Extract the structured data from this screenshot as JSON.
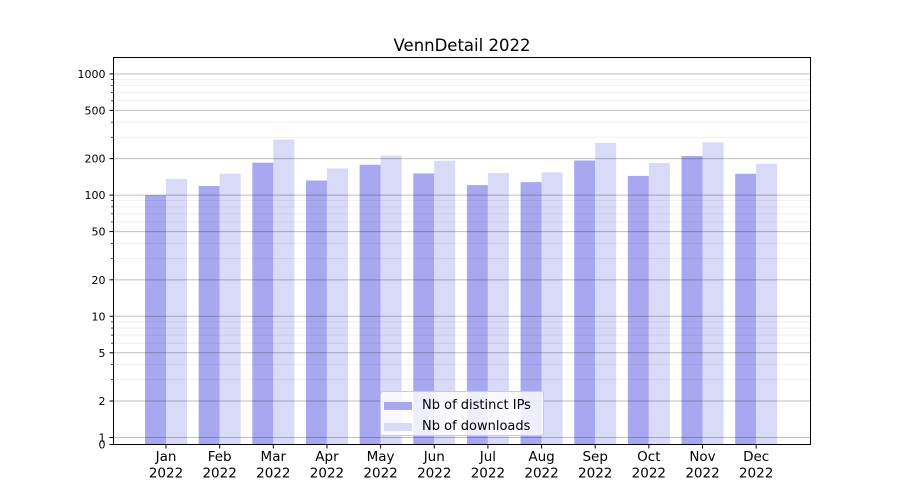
{
  "title": "VennDetail 2022",
  "colors": {
    "ips_bar": "#a8a8f0",
    "downloads_bar": "#d9d9f8",
    "axis": "#000000",
    "grid_major": "rgba(0,0,0,0.25)",
    "grid_minor": "rgba(0,0,0,0.07)",
    "background": "#ffffff"
  },
  "legend": {
    "items": [
      {
        "label": "Nb of distinct IPs",
        "color_key": "ips_bar"
      },
      {
        "label": "Nb of downloads",
        "color_key": "downloads_bar"
      }
    ]
  },
  "chart_data": {
    "type": "bar",
    "title": "VennDetail 2022",
    "yscale": "symlog",
    "grid": true,
    "legend_position": "lower center",
    "categories": [
      "Jan 2022",
      "Feb 2022",
      "Mar 2022",
      "Apr 2022",
      "May 2022",
      "Jun 2022",
      "Jul 2022",
      "Aug 2022",
      "Sep 2022",
      "Oct 2022",
      "Nov 2022",
      "Dec 2022"
    ],
    "series": [
      {
        "name": "Nb of distinct IPs",
        "values": [
          100,
          119,
          185,
          132,
          178,
          151,
          121,
          128,
          193,
          144,
          210,
          150
        ]
      },
      {
        "name": "Nb of downloads",
        "values": [
          136,
          150,
          287,
          166,
          212,
          192,
          152,
          154,
          270,
          184,
          272,
          181
        ]
      }
    ],
    "y_ticks": [
      0,
      1,
      2,
      5,
      10,
      20,
      50,
      100,
      200,
      500,
      1000
    ],
    "y_minor_gridlines": [
      3,
      4,
      6,
      7,
      8,
      9,
      30,
      40,
      60,
      70,
      80,
      90,
      300,
      400,
      600,
      700,
      800,
      900
    ],
    "ylim": [
      0,
      1380
    ]
  }
}
